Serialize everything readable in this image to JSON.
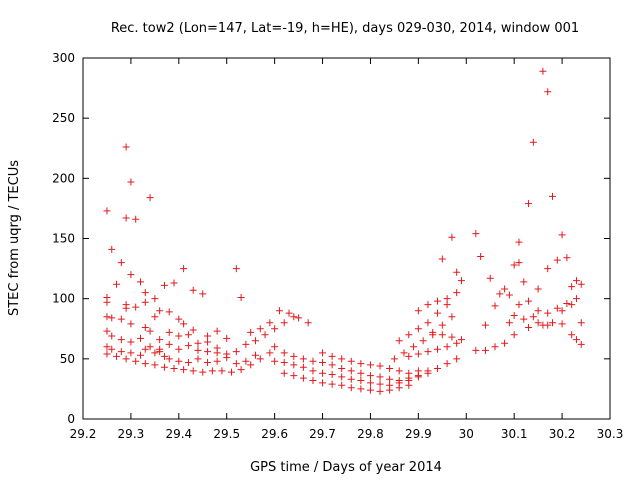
{
  "chart_data": {
    "type": "scatter",
    "title": "Rec. tow2 (Lon=147, Lat=-19, h=HE), days 029-030, 2014, window 001",
    "xlabel": "GPS time / Days of year 2014",
    "ylabel": "STEC from uqrg / TECUs",
    "xlim": [
      29.2,
      30.3
    ],
    "ylim": [
      0,
      300
    ],
    "xticks": [
      "29.2",
      "29.3",
      "29.4",
      "29.5",
      "29.6",
      "29.7",
      "29.8",
      "29.9",
      "30",
      "30.1",
      "30.2",
      "30.3"
    ],
    "yticks": [
      "0",
      "50",
      "100",
      "150",
      "200",
      "250",
      "300"
    ],
    "marker": "+",
    "grid": false,
    "colors": {
      "marker": "#e41a1c",
      "axis": "#000000"
    },
    "series": [
      {
        "name": "STEC",
        "points": [
          [
            29.25,
            173
          ],
          [
            29.26,
            141
          ],
          [
            29.29,
            226
          ],
          [
            29.3,
            197
          ],
          [
            29.29,
            167
          ],
          [
            29.31,
            166
          ],
          [
            29.34,
            184
          ],
          [
            29.52,
            125
          ],
          [
            29.41,
            125
          ],
          [
            29.28,
            130
          ],
          [
            29.3,
            120
          ],
          [
            29.32,
            114
          ],
          [
            29.27,
            112
          ],
          [
            29.25,
            101
          ],
          [
            29.25,
            97
          ],
          [
            29.29,
            95
          ],
          [
            29.29,
            92
          ],
          [
            29.33,
            105
          ],
          [
            29.35,
            100
          ],
          [
            29.37,
            111
          ],
          [
            29.39,
            113
          ],
          [
            29.43,
            107
          ],
          [
            29.45,
            104
          ],
          [
            29.53,
            101
          ],
          [
            29.25,
            85
          ],
          [
            29.26,
            84
          ],
          [
            29.28,
            83
          ],
          [
            29.3,
            79
          ],
          [
            29.31,
            93
          ],
          [
            29.33,
            97
          ],
          [
            29.35,
            85
          ],
          [
            29.36,
            90
          ],
          [
            29.38,
            89
          ],
          [
            29.4,
            83
          ],
          [
            29.41,
            79
          ],
          [
            29.43,
            74
          ],
          [
            29.46,
            69
          ],
          [
            29.48,
            73
          ],
          [
            29.5,
            67
          ],
          [
            29.25,
            73
          ],
          [
            29.26,
            69
          ],
          [
            29.28,
            66
          ],
          [
            29.3,
            64
          ],
          [
            29.32,
            67
          ],
          [
            29.33,
            76
          ],
          [
            29.34,
            73
          ],
          [
            29.36,
            66
          ],
          [
            29.38,
            72
          ],
          [
            29.4,
            69
          ],
          [
            29.42,
            70
          ],
          [
            29.44,
            63
          ],
          [
            29.46,
            64
          ],
          [
            29.48,
            59
          ],
          [
            29.25,
            60
          ],
          [
            29.26,
            58
          ],
          [
            29.28,
            56
          ],
          [
            29.3,
            55
          ],
          [
            29.32,
            53
          ],
          [
            29.33,
            58
          ],
          [
            29.35,
            55
          ],
          [
            29.36,
            56
          ],
          [
            29.37,
            52
          ],
          [
            29.38,
            50
          ],
          [
            29.4,
            48
          ],
          [
            29.42,
            47
          ],
          [
            29.44,
            50
          ],
          [
            29.46,
            47
          ],
          [
            29.48,
            48
          ],
          [
            29.5,
            51
          ],
          [
            29.52,
            46
          ],
          [
            29.54,
            48
          ],
          [
            29.56,
            53
          ],
          [
            29.25,
            54
          ],
          [
            29.27,
            52
          ],
          [
            29.29,
            50
          ],
          [
            29.31,
            48
          ],
          [
            29.33,
            46
          ],
          [
            29.35,
            45
          ],
          [
            29.37,
            43
          ],
          [
            29.39,
            42
          ],
          [
            29.41,
            41
          ],
          [
            29.43,
            40
          ],
          [
            29.45,
            39
          ],
          [
            29.47,
            40
          ],
          [
            29.49,
            40
          ],
          [
            29.51,
            39
          ],
          [
            29.53,
            41
          ],
          [
            29.55,
            45
          ],
          [
            29.57,
            50
          ],
          [
            29.59,
            55
          ],
          [
            29.34,
            60
          ],
          [
            29.36,
            58
          ],
          [
            29.38,
            62
          ],
          [
            29.4,
            58
          ],
          [
            29.42,
            61
          ],
          [
            29.44,
            57
          ],
          [
            29.46,
            56
          ],
          [
            29.48,
            55
          ],
          [
            29.5,
            54
          ],
          [
            29.52,
            56
          ],
          [
            29.54,
            62
          ],
          [
            29.56,
            65
          ],
          [
            29.58,
            70
          ],
          [
            29.6,
            75
          ],
          [
            29.62,
            80
          ],
          [
            29.64,
            85
          ],
          [
            29.55,
            72
          ],
          [
            29.57,
            75
          ],
          [
            29.59,
            80
          ],
          [
            29.61,
            90
          ],
          [
            29.63,
            88
          ],
          [
            29.65,
            84
          ],
          [
            29.67,
            80
          ],
          [
            29.6,
            60
          ],
          [
            29.62,
            55
          ],
          [
            29.64,
            52
          ],
          [
            29.66,
            50
          ],
          [
            29.68,
            48
          ],
          [
            29.7,
            47
          ],
          [
            29.72,
            45
          ],
          [
            29.6,
            48
          ],
          [
            29.62,
            47
          ],
          [
            29.64,
            45
          ],
          [
            29.66,
            43
          ],
          [
            29.68,
            40
          ],
          [
            29.7,
            38
          ],
          [
            29.72,
            37
          ],
          [
            29.74,
            35
          ],
          [
            29.76,
            33
          ],
          [
            29.78,
            32
          ],
          [
            29.62,
            38
          ],
          [
            29.64,
            36
          ],
          [
            29.66,
            34
          ],
          [
            29.68,
            32
          ],
          [
            29.7,
            30
          ],
          [
            29.72,
            29
          ],
          [
            29.74,
            28
          ],
          [
            29.76,
            26
          ],
          [
            29.78,
            25
          ],
          [
            29.8,
            24
          ],
          [
            29.82,
            23
          ],
          [
            29.84,
            24
          ],
          [
            29.86,
            26
          ],
          [
            29.88,
            28
          ],
          [
            29.7,
            55
          ],
          [
            29.72,
            52
          ],
          [
            29.74,
            50
          ],
          [
            29.76,
            48
          ],
          [
            29.78,
            46
          ],
          [
            29.8,
            45
          ],
          [
            29.82,
            44
          ],
          [
            29.84,
            42
          ],
          [
            29.86,
            40
          ],
          [
            29.88,
            38
          ],
          [
            29.9,
            40
          ],
          [
            29.74,
            42
          ],
          [
            29.76,
            40
          ],
          [
            29.78,
            38
          ],
          [
            29.8,
            36
          ],
          [
            29.82,
            35
          ],
          [
            29.84,
            33
          ],
          [
            29.86,
            32
          ],
          [
            29.88,
            34
          ],
          [
            29.9,
            36
          ],
          [
            29.92,
            40
          ],
          [
            29.8,
            30
          ],
          [
            29.82,
            29
          ],
          [
            29.84,
            28
          ],
          [
            29.86,
            30
          ],
          [
            29.88,
            32
          ],
          [
            29.9,
            35
          ],
          [
            29.92,
            38
          ],
          [
            29.94,
            42
          ],
          [
            29.96,
            46
          ],
          [
            29.98,
            50
          ],
          [
            29.85,
            50
          ],
          [
            29.87,
            55
          ],
          [
            29.89,
            60
          ],
          [
            29.91,
            65
          ],
          [
            29.93,
            70
          ],
          [
            29.95,
            78
          ],
          [
            29.97,
            85
          ],
          [
            29.86,
            65
          ],
          [
            29.88,
            70
          ],
          [
            29.9,
            75
          ],
          [
            29.92,
            80
          ],
          [
            29.94,
            88
          ],
          [
            29.96,
            95
          ],
          [
            29.98,
            105
          ],
          [
            29.99,
            115
          ],
          [
            29.9,
            90
          ],
          [
            29.92,
            95
          ],
          [
            29.94,
            98
          ],
          [
            29.96,
            100
          ],
          [
            29.95,
            133
          ],
          [
            29.97,
            151
          ],
          [
            29.98,
            122
          ],
          [
            30.02,
            154
          ],
          [
            29.88,
            52
          ],
          [
            29.9,
            54
          ],
          [
            29.92,
            56
          ],
          [
            29.94,
            58
          ],
          [
            29.96,
            60
          ],
          [
            29.98,
            63
          ],
          [
            29.93,
            72
          ],
          [
            29.95,
            70
          ],
          [
            29.97,
            68
          ],
          [
            29.99,
            66
          ],
          [
            30.02,
            57
          ],
          [
            30.04,
            57
          ],
          [
            30.06,
            60
          ],
          [
            30.08,
            63
          ],
          [
            30.1,
            70
          ],
          [
            30.03,
            135
          ],
          [
            30.05,
            117
          ],
          [
            30.04,
            78
          ],
          [
            30.06,
            94
          ],
          [
            30.07,
            104
          ],
          [
            30.08,
            108
          ],
          [
            30.09,
            103
          ],
          [
            30.1,
            128
          ],
          [
            30.11,
            147
          ],
          [
            30.11,
            130
          ],
          [
            30.12,
            114
          ],
          [
            30.13,
            179
          ],
          [
            30.14,
            230
          ],
          [
            30.15,
            108
          ],
          [
            30.16,
            289
          ],
          [
            30.17,
            272
          ],
          [
            30.17,
            125
          ],
          [
            30.18,
            185
          ],
          [
            30.19,
            132
          ],
          [
            30.2,
            153
          ],
          [
            30.21,
            134
          ],
          [
            30.1,
            86
          ],
          [
            30.12,
            83
          ],
          [
            30.14,
            85
          ],
          [
            30.16,
            78
          ],
          [
            30.18,
            80
          ],
          [
            30.2,
            79
          ],
          [
            30.11,
            95
          ],
          [
            30.13,
            98
          ],
          [
            30.15,
            90
          ],
          [
            30.17,
            88
          ],
          [
            30.19,
            92
          ],
          [
            30.21,
            96
          ],
          [
            30.09,
            80
          ],
          [
            30.13,
            76
          ],
          [
            30.15,
            80
          ],
          [
            30.17,
            78
          ],
          [
            30.2,
            90
          ],
          [
            30.22,
            110
          ],
          [
            30.23,
            115
          ],
          [
            30.24,
            112
          ],
          [
            30.23,
            100
          ],
          [
            30.22,
            95
          ],
          [
            30.24,
            80
          ],
          [
            30.22,
            70
          ],
          [
            30.23,
            66
          ],
          [
            30.24,
            62
          ]
        ]
      }
    ]
  }
}
